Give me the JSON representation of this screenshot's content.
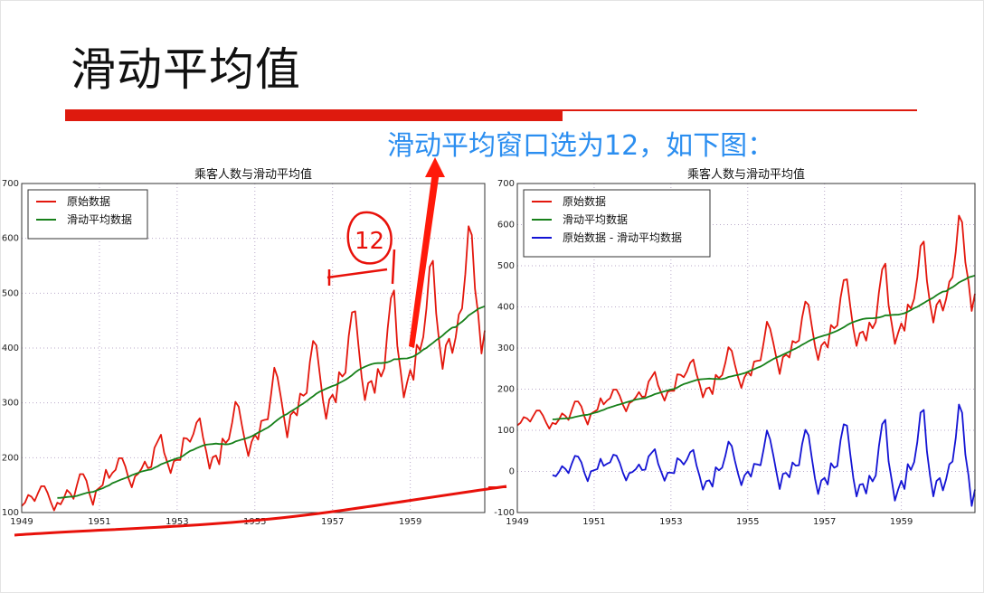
{
  "slide": {
    "title": "滑动平均值",
    "note": "滑动平均窗口选为12，如下图：",
    "accent_color": "#de1a0e",
    "note_color": "#2b8ef0",
    "handwritten": "12"
  },
  "chart_data": [
    {
      "type": "line",
      "title": "乘客人数与滑动平均值",
      "xlabel": "",
      "ylabel": "",
      "xlim": [
        1949,
        1960.917
      ],
      "ylim": [
        100,
        700
      ],
      "x_ticks": [
        "1949",
        "1951",
        "1953",
        "1955",
        "1957",
        "1959"
      ],
      "y_ticks": [
        "100",
        "200",
        "300",
        "400",
        "500",
        "600",
        "700"
      ],
      "grid": true,
      "legend": "top-left",
      "start": "1949-01",
      "frequency": "monthly",
      "series": [
        {
          "name": "原始数据",
          "color": "#e3170d",
          "key": "raw"
        },
        {
          "name": "滑动平均数据",
          "color": "#17801a",
          "key": "rolling"
        }
      ]
    },
    {
      "type": "line",
      "title": "乘客人数与滑动平均值",
      "xlabel": "",
      "ylabel": "",
      "xlim": [
        1949,
        1960.917
      ],
      "ylim": [
        -100,
        700
      ],
      "x_ticks": [
        "1949",
        "1951",
        "1953",
        "1955",
        "1957",
        "1959"
      ],
      "y_ticks": [
        "-100",
        "0",
        "100",
        "200",
        "300",
        "400",
        "500",
        "600",
        "700"
      ],
      "grid": true,
      "legend": "top-left",
      "start": "1949-01",
      "frequency": "monthly",
      "series": [
        {
          "name": "原始数据",
          "color": "#e3170d",
          "key": "raw"
        },
        {
          "name": "滑动平均数据",
          "color": "#17801a",
          "key": "rolling"
        },
        {
          "name": "原始数据 - 滑动平均数据",
          "color": "#1414d4",
          "key": "diff"
        }
      ]
    }
  ],
  "series_values": {
    "raw": [
      112,
      118,
      132,
      129,
      121,
      135,
      148,
      148,
      136,
      119,
      104,
      118,
      115,
      126,
      141,
      135,
      125,
      149,
      170,
      170,
      158,
      133,
      114,
      140,
      145,
      150,
      178,
      163,
      172,
      178,
      199,
      199,
      184,
      162,
      146,
      166,
      171,
      180,
      193,
      181,
      183,
      218,
      230,
      242,
      209,
      191,
      172,
      194,
      196,
      196,
      236,
      235,
      229,
      243,
      264,
      272,
      237,
      211,
      180,
      201,
      204,
      188,
      235,
      227,
      234,
      264,
      302,
      293,
      259,
      229,
      203,
      229,
      242,
      233,
      267,
      269,
      270,
      315,
      364,
      347,
      312,
      274,
      237,
      278,
      284,
      277,
      317,
      313,
      318,
      374,
      413,
      405,
      355,
      306,
      271,
      306,
      315,
      301,
      356,
      348,
      355,
      422,
      465,
      467,
      404,
      347,
      305,
      336,
      340,
      318,
      362,
      348,
      363,
      435,
      491,
      505,
      404,
      359,
      310,
      337,
      360,
      342,
      406,
      396,
      420,
      472,
      548,
      559,
      463,
      407,
      362,
      405,
      417,
      391,
      419,
      461,
      472,
      535,
      622,
      606,
      508,
      461,
      390,
      432
    ],
    "rolling_window": 12,
    "rolling_start": "1949-12",
    "rolling": [
      126.7,
      126.9,
      127.6,
      128.3,
      128.8,
      129.2,
      130.3,
      132.2,
      134.0,
      135.8,
      137.0,
      137.8,
      139.7,
      142.2,
      144.2,
      147.3,
      149.6,
      153.5,
      155.9,
      158.3,
      160.8,
      162.9,
      165.3,
      168.0,
      170.2,
      172.3,
      174.8,
      176.1,
      177.6,
      178.5,
      181.8,
      184.4,
      188.0,
      190.1,
      192.5,
      194.7,
      197.0,
      199.1,
      200.4,
      204.0,
      208.5,
      212.3,
      214.4,
      217.3,
      219.8,
      222.1,
      223.8,
      224.4,
      225.0,
      225.7,
      225.0,
      224.9,
      224.3,
      224.7,
      226.4,
      229.6,
      231.3,
      233.2,
      234.7,
      236.6,
      238.9,
      242.1,
      245.8,
      248.5,
      252.0,
      255.0,
      259.3,
      264.4,
      268.9,
      273.3,
      277.1,
      279.9,
      284.0,
      287.5,
      291.2,
      295.3,
      299.0,
      303.0,
      307.9,
      312.0,
      316.8,
      320.4,
      323.1,
      325.9,
      328.3,
      330.8,
      332.8,
      336.1,
      339.0,
      342.1,
      346.1,
      350.4,
      355.6,
      359.7,
      363.1,
      365.9,
      368.4,
      370.5,
      371.9,
      372.4,
      372.4,
      373.1,
      374.2,
      376.3,
      379.5,
      379.5,
      380.5,
      380.9,
      381.0,
      382.7,
      384.7,
      388.3,
      392.3,
      397.1,
      400.2,
      404.9,
      409.4,
      414.3,
      418.3,
      422.7,
      428.3,
      433.1,
      437.2,
      438.3,
      443.7,
      448.0,
      453.3,
      459.4,
      463.3,
      467.1,
      471.6,
      473.9,
      476.2
    ]
  }
}
